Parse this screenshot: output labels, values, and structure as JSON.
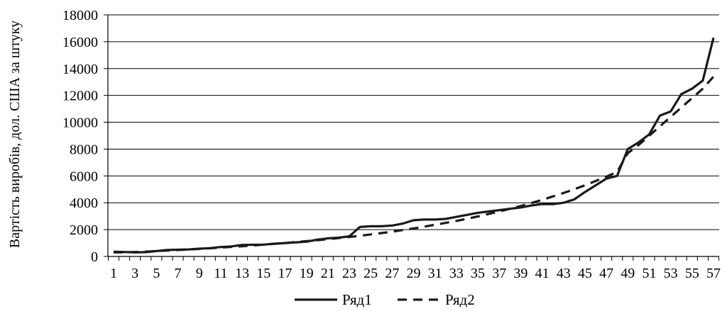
{
  "chart_data": {
    "type": "line",
    "title": "",
    "xlabel": "",
    "ylabel": "Вартість виробів, дол. США за штуку",
    "xlim": [
      1,
      57
    ],
    "ylim": [
      0,
      18000
    ],
    "yticks": [
      0,
      2000,
      4000,
      6000,
      8000,
      10000,
      12000,
      14000,
      16000,
      18000
    ],
    "ytick_labels": [
      "0",
      "2000",
      "4000",
      "6000",
      "8000",
      "10000",
      "12000",
      "14000",
      "16000",
      "18000"
    ],
    "xtick_labels": [
      "1",
      "3",
      "5",
      "7",
      "9",
      "11",
      "13",
      "15",
      "17",
      "19",
      "21",
      "23",
      "25",
      "27",
      "29",
      "31",
      "33",
      "35",
      "37",
      "39",
      "41",
      "43",
      "45",
      "47",
      "49",
      "51",
      "53",
      "55",
      "57"
    ],
    "grid": "horizontal",
    "legend_position": "bottom-center",
    "x": [
      1,
      2,
      3,
      4,
      5,
      6,
      7,
      8,
      9,
      10,
      11,
      12,
      13,
      14,
      15,
      16,
      17,
      18,
      19,
      20,
      21,
      22,
      23,
      24,
      25,
      26,
      27,
      28,
      29,
      30,
      31,
      32,
      33,
      34,
      35,
      36,
      37,
      38,
      39,
      40,
      41,
      42,
      43,
      44,
      45,
      46,
      47,
      48,
      49,
      50,
      51,
      52,
      53,
      54,
      55,
      56,
      57
    ],
    "series": [
      {
        "name": "Ряд1",
        "style": "solid",
        "color": "#1a1a1a",
        "values": [
          350,
          330,
          300,
          320,
          400,
          480,
          500,
          520,
          580,
          620,
          700,
          750,
          860,
          870,
          880,
          950,
          1000,
          1050,
          1100,
          1250,
          1350,
          1400,
          1500,
          2200,
          2250,
          2250,
          2300,
          2450,
          2700,
          2750,
          2750,
          2800,
          2950,
          3100,
          3250,
          3350,
          3450,
          3550,
          3650,
          3800,
          3900,
          3900,
          4000,
          4250,
          4800,
          5300,
          5800,
          6000,
          8000,
          8500,
          9100,
          10500,
          10800,
          12100,
          12500,
          13100,
          16300
        ]
      },
      {
        "name": "Ряд2",
        "style": "dashed",
        "color": "#1a1a1a",
        "values": [
          300,
          310,
          330,
          360,
          400,
          440,
          480,
          520,
          560,
          610,
          660,
          710,
          760,
          820,
          880,
          940,
          1000,
          1070,
          1140,
          1210,
          1290,
          1370,
          1450,
          1540,
          1640,
          1740,
          1850,
          1970,
          2090,
          2220,
          2360,
          2500,
          2650,
          2810,
          2980,
          3160,
          3350,
          3550,
          3760,
          3980,
          4220,
          4470,
          4730,
          5010,
          5300,
          5620,
          5950,
          6300,
          7700,
          8300,
          9000,
          9700,
          10400,
          11100,
          11800,
          12500,
          13400
        ]
      }
    ]
  }
}
